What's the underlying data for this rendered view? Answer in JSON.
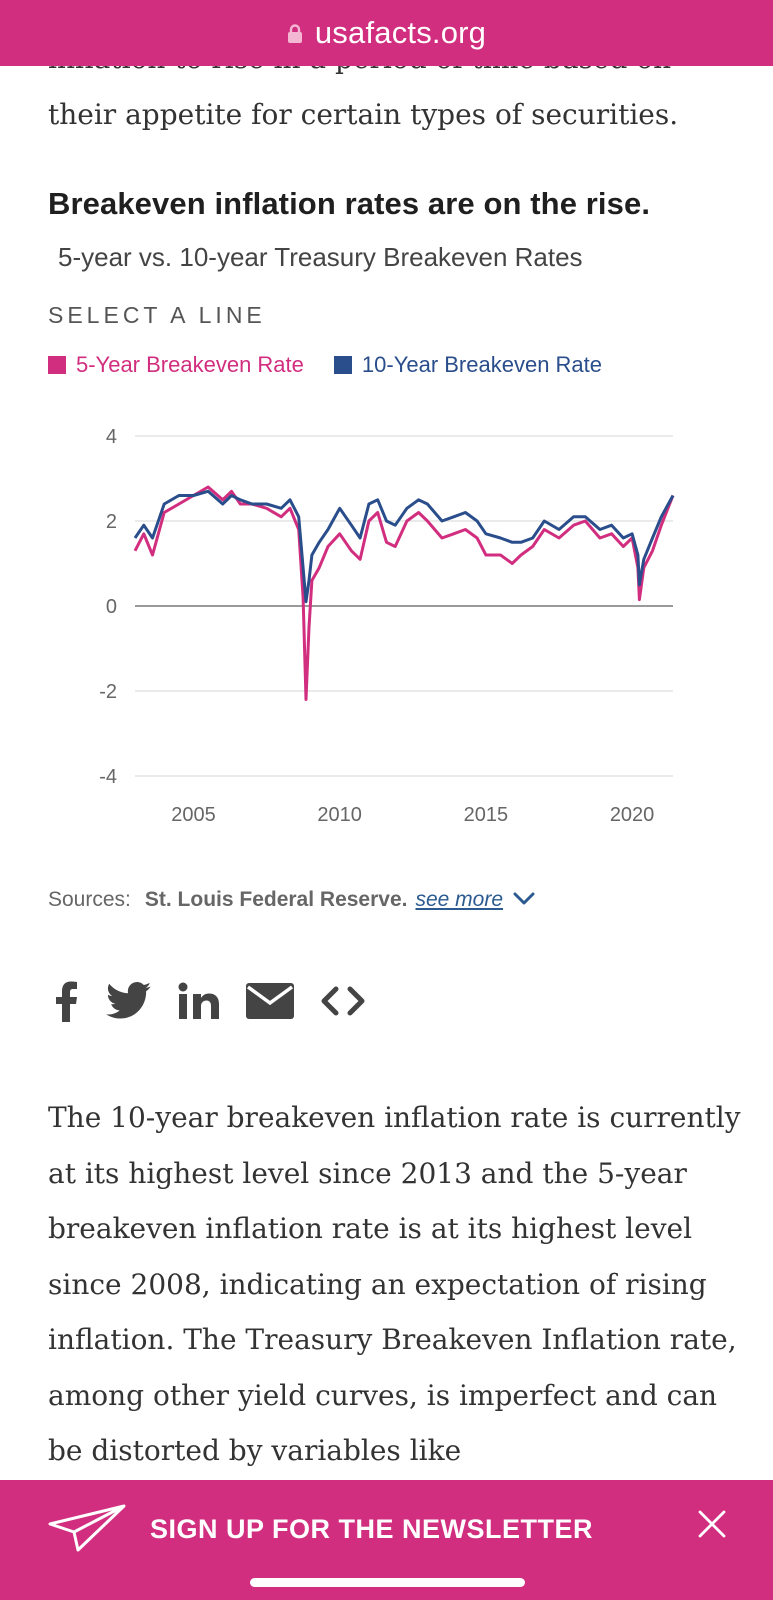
{
  "browser": {
    "domain": "usafacts.org",
    "lock_icon": "lock-icon"
  },
  "article": {
    "intro_line_cut": "inflation to rise in a period of time based on",
    "intro_line": "their appetite for certain types of securities.",
    "body_text": "The 10-year breakeven inflation rate is currently at its highest level since 2013 and the 5-year breakeven inflation rate is at its highest level since 2008, indicating an expectation of rising inflation. The Treasury Breakeven Inflation rate, among other yield curves, is imperfect and can be distorted by variables like"
  },
  "chart_section": {
    "title": "Breakeven inflation rates are on the rise.",
    "subtitle": "5-year vs. 10-year Treasury Breakeven Rates",
    "select_label": "SELECT A LINE",
    "sources_label": "Sources:",
    "sources_name": "St. Louis Federal Reserve.",
    "see_more": "see more"
  },
  "share": {
    "icons": [
      "facebook-icon",
      "twitter-icon",
      "linkedin-icon",
      "email-icon",
      "embed-icon"
    ]
  },
  "newsletter": {
    "label": "SIGN UP FOR THE NEWSLETTER"
  },
  "colors": {
    "brand": "#d22e7f",
    "series_5y": "#d22e7f",
    "series_10y": "#2a4e8c"
  },
  "chart_data": {
    "type": "line",
    "title": "Breakeven inflation rates are on the rise.",
    "subtitle": "5-year vs. 10-year Treasury Breakeven Rates",
    "xlabel": "",
    "ylabel": "",
    "xlim": [
      2003.0,
      2021.4
    ],
    "ylim": [
      -4,
      4
    ],
    "x_ticks": [
      2005,
      2010,
      2015,
      2020
    ],
    "y_ticks": [
      4,
      2,
      0,
      -2,
      -4
    ],
    "legend": "top-left",
    "series": [
      {
        "name": "5-Year Breakeven Rate",
        "color": "#d22e7f",
        "x": [
          2003.0,
          2003.3,
          2003.6,
          2004.0,
          2004.5,
          2005.0,
          2005.5,
          2006.0,
          2006.3,
          2006.6,
          2007.0,
          2007.5,
          2008.0,
          2008.3,
          2008.6,
          2008.75,
          2008.85,
          2008.95,
          2009.05,
          2009.3,
          2009.6,
          2010.0,
          2010.4,
          2010.7,
          2011.0,
          2011.3,
          2011.6,
          2011.9,
          2012.3,
          2012.7,
          2013.0,
          2013.5,
          2013.9,
          2014.3,
          2014.7,
          2015.0,
          2015.5,
          2015.9,
          2016.2,
          2016.6,
          2017.0,
          2017.5,
          2018.0,
          2018.4,
          2018.9,
          2019.3,
          2019.7,
          2020.0,
          2020.2,
          2020.25,
          2020.4,
          2020.7,
          2021.0,
          2021.4
        ],
        "y": [
          1.3,
          1.7,
          1.2,
          2.2,
          2.4,
          2.6,
          2.8,
          2.5,
          2.7,
          2.4,
          2.4,
          2.3,
          2.1,
          2.3,
          1.8,
          0.2,
          -2.2,
          -0.5,
          0.6,
          0.9,
          1.4,
          1.7,
          1.3,
          1.1,
          2.0,
          2.2,
          1.5,
          1.4,
          2.0,
          2.2,
          2.0,
          1.6,
          1.7,
          1.8,
          1.6,
          1.2,
          1.2,
          1.0,
          1.2,
          1.4,
          1.8,
          1.6,
          1.9,
          2.0,
          1.6,
          1.7,
          1.4,
          1.6,
          0.9,
          0.15,
          0.9,
          1.3,
          1.9,
          2.6
        ]
      },
      {
        "name": "10-Year Breakeven Rate",
        "color": "#2a4e8c",
        "x": [
          2003.0,
          2003.3,
          2003.6,
          2004.0,
          2004.5,
          2005.0,
          2005.5,
          2006.0,
          2006.3,
          2006.6,
          2007.0,
          2007.5,
          2008.0,
          2008.3,
          2008.6,
          2008.75,
          2008.85,
          2008.95,
          2009.05,
          2009.3,
          2009.6,
          2010.0,
          2010.4,
          2010.7,
          2011.0,
          2011.3,
          2011.6,
          2011.9,
          2012.3,
          2012.7,
          2013.0,
          2013.5,
          2013.9,
          2014.3,
          2014.7,
          2015.0,
          2015.5,
          2015.9,
          2016.2,
          2016.6,
          2017.0,
          2017.5,
          2018.0,
          2018.4,
          2018.9,
          2019.3,
          2019.7,
          2020.0,
          2020.2,
          2020.25,
          2020.4,
          2020.7,
          2021.0,
          2021.4
        ],
        "y": [
          1.6,
          1.9,
          1.6,
          2.4,
          2.6,
          2.6,
          2.7,
          2.4,
          2.6,
          2.5,
          2.4,
          2.4,
          2.3,
          2.5,
          2.1,
          0.9,
          0.1,
          0.6,
          1.2,
          1.5,
          1.8,
          2.3,
          1.9,
          1.6,
          2.4,
          2.5,
          2.0,
          1.9,
          2.3,
          2.5,
          2.4,
          2.0,
          2.1,
          2.2,
          2.0,
          1.7,
          1.6,
          1.5,
          1.5,
          1.6,
          2.0,
          1.8,
          2.1,
          2.1,
          1.8,
          1.9,
          1.6,
          1.7,
          1.2,
          0.5,
          1.1,
          1.6,
          2.1,
          2.6
        ]
      }
    ]
  }
}
